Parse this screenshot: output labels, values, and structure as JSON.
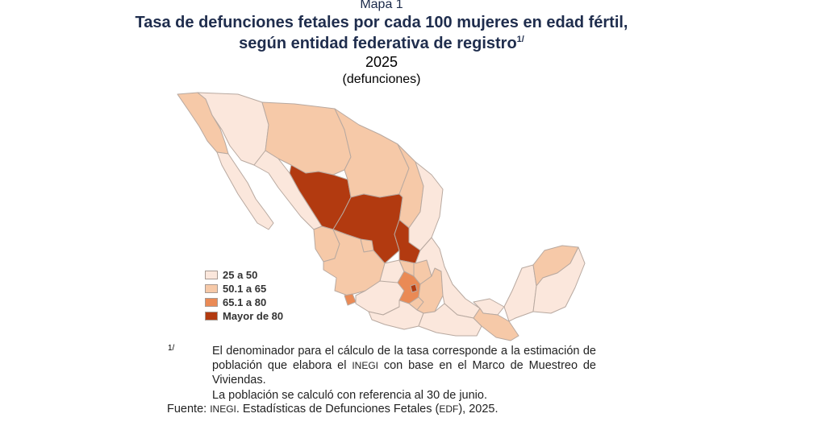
{
  "header": {
    "map_label": "Mapa 1",
    "title_line1": "Tasa de defunciones fetales por cada 100 mujeres en edad fértil,",
    "title_line2": "según entidad federativa de registro",
    "title_sup": "1/",
    "year": "2025",
    "units": "(defunciones)"
  },
  "legend": {
    "items": [
      {
        "label": "25 a 50",
        "color": "#fbe7dc"
      },
      {
        "label": "50.1 a 65",
        "color": "#f6c9a8"
      },
      {
        "label": "65.1 a 80",
        "color": "#ea8a55"
      },
      {
        "label": "Mayor de 80",
        "color": "#b23a10"
      }
    ]
  },
  "map": {
    "classes": {
      "c1": "#fbe7dc",
      "c2": "#f6c9a8",
      "c3": "#ea8a55",
      "c4": "#b23a10"
    }
  },
  "footnote": {
    "marker": "1/",
    "text_a": "El denominador para el cálculo de la tasa corresponde a la estimación de población que elabora el ",
    "text_inegi": "INEGI",
    "text_b": " con base en el Marco de Muestreo de Viviendas.",
    "text_line2": "La población se calculó con referencia al 30 de junio."
  },
  "source": {
    "label": "Fuente:",
    "org": "INEGI",
    "text_a": ". Estadísticas de Defunciones Fetales (",
    "abbr": "EDF",
    "text_b": "), 2025."
  }
}
